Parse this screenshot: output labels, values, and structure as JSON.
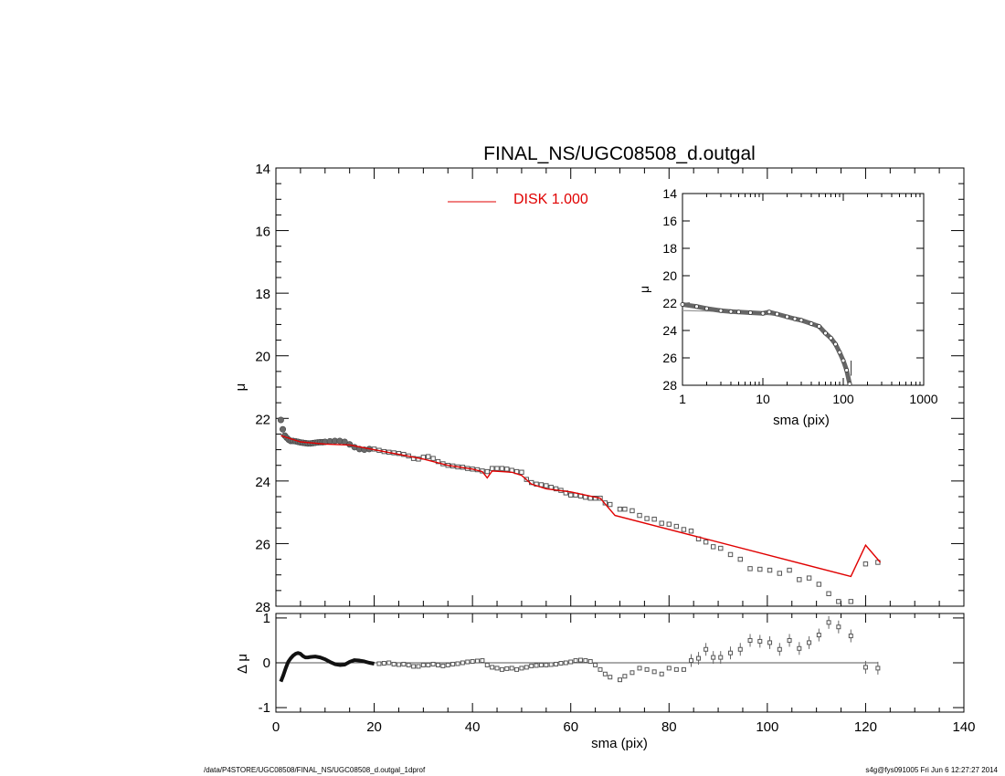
{
  "title": "FINAL_NS/UGC08508_d.outgal",
  "footer": {
    "left": "/data/P4STORE/UGC08508/FINAL_NS/UGC08508_d.outgal_1dprof",
    "right": "s4g@fys091005  Fri Jun  6 12:27:27 2014"
  },
  "colors": {
    "model": "#e00000",
    "data": "#555555",
    "axes": "#000000"
  },
  "chart_data": [
    {
      "panel": "main",
      "type": "scatter",
      "ylabel": "μ",
      "xlim": [
        0,
        140
      ],
      "ylim": [
        28,
        14
      ],
      "yticks": [
        14,
        16,
        18,
        20,
        22,
        24,
        26,
        28
      ],
      "legend": {
        "label": "DISK  1.000",
        "position": "top-center"
      },
      "series": [
        {
          "role": "observed",
          "x": [
            1.0,
            1.4,
            1.8,
            2.2,
            2.6,
            3.0,
            3.5,
            4.0,
            4.5,
            5.0,
            5.5,
            6.0,
            6.5,
            7.0,
            7.5,
            8.0,
            8.5,
            9.0,
            9.5,
            10.0,
            11.0,
            12.0,
            13.0,
            14.0,
            15.0,
            16.0,
            17.0,
            18.0,
            19.0,
            20.0,
            21.0,
            22.0,
            23.0,
            24.0,
            25.0,
            26.0,
            27.0,
            28.0,
            29.0,
            30.0,
            31.0,
            32.0,
            33.0,
            34.0,
            35.0,
            36.0,
            37.0,
            38.0,
            39.0,
            40.0,
            41.0,
            42.0,
            43.0,
            44.0,
            45.0,
            46.0,
            47.0,
            48.0,
            49.0,
            50.0,
            51.0,
            52.0,
            53.0,
            54.0,
            55.0,
            56.0,
            57.0,
            58.0,
            59.0,
            60.0,
            61.0,
            62.0,
            63.0,
            64.0,
            65.0,
            66.0,
            67.0,
            68.0,
            70.0,
            71.0,
            72.5,
            74.0,
            75.5,
            77.0,
            78.5,
            80.0,
            81.5,
            83.0,
            84.5,
            86.0,
            87.5,
            89.0,
            90.5,
            92.5,
            94.5,
            96.5,
            98.5,
            100.5,
            102.5,
            104.5,
            106.5,
            108.5,
            110.5,
            112.5,
            114.5,
            117.0,
            120.0,
            122.5
          ],
          "y": [
            22.05,
            22.35,
            22.55,
            22.62,
            22.68,
            22.72,
            22.72,
            22.73,
            22.75,
            22.77,
            22.78,
            22.79,
            22.8,
            22.8,
            22.79,
            22.78,
            22.77,
            22.76,
            22.76,
            22.75,
            22.73,
            22.72,
            22.72,
            22.75,
            22.83,
            22.92,
            22.98,
            23.0,
            22.98,
            22.98,
            23.02,
            23.06,
            23.08,
            23.1,
            23.12,
            23.15,
            23.2,
            23.28,
            23.3,
            23.24,
            23.22,
            23.28,
            23.38,
            23.45,
            23.5,
            23.52,
            23.55,
            23.56,
            23.6,
            23.62,
            23.64,
            23.68,
            23.7,
            23.6,
            23.6,
            23.6,
            23.62,
            23.66,
            23.7,
            23.72,
            23.95,
            24.05,
            24.1,
            24.12,
            24.15,
            24.2,
            24.25,
            24.3,
            24.38,
            24.45,
            24.45,
            24.48,
            24.52,
            24.55,
            24.55,
            24.55,
            24.7,
            24.75,
            24.9,
            24.9,
            24.95,
            25.1,
            25.2,
            25.22,
            25.35,
            25.38,
            25.45,
            25.55,
            25.6,
            25.85,
            25.95,
            26.1,
            26.15,
            26.35,
            26.5,
            26.8,
            26.82,
            26.85,
            26.95,
            26.85,
            27.15,
            27.1,
            27.3,
            27.6,
            27.85,
            27.85,
            26.65,
            26.6
          ]
        },
        {
          "role": "model",
          "name": "DISK  1.000",
          "x": [
            1,
            5,
            10,
            15,
            20,
            25,
            30,
            35,
            40,
            42,
            43,
            44,
            46,
            48,
            50,
            52,
            55,
            60,
            63,
            66,
            69,
            117,
            120,
            123
          ],
          "y": [
            22.55,
            22.75,
            22.82,
            22.85,
            23.0,
            23.15,
            23.3,
            23.5,
            23.62,
            23.7,
            23.9,
            23.68,
            23.7,
            23.72,
            23.82,
            24.1,
            24.25,
            24.35,
            24.45,
            24.55,
            25.1,
            27.05,
            26.05,
            26.6
          ]
        }
      ]
    },
    {
      "panel": "residual",
      "type": "scatter",
      "xlabel": "sma (pix)",
      "ylabel": "Δ μ",
      "xlim": [
        0,
        140
      ],
      "ylim": [
        -1.1,
        1.1
      ],
      "xticks": [
        0,
        20,
        40,
        60,
        80,
        100,
        120,
        140
      ],
      "yticks": [
        1,
        0,
        -1
      ],
      "series": [
        {
          "role": "residual-line",
          "x": [
            1.0,
            1.5,
            2.0,
            2.5,
            3.0,
            3.5,
            4.0,
            4.5,
            5.0,
            5.5,
            6.0,
            6.5,
            7.0,
            8.0,
            9.0,
            10.0,
            11.0,
            12.0,
            13.0,
            14.0,
            15.0,
            16.0,
            17.0,
            18.0,
            19.0,
            20.0
          ],
          "y": [
            -0.42,
            -0.28,
            -0.12,
            0.02,
            0.1,
            0.16,
            0.2,
            0.22,
            0.2,
            0.15,
            0.12,
            0.12,
            0.13,
            0.14,
            0.12,
            0.08,
            0.02,
            -0.03,
            -0.05,
            -0.04,
            0.02,
            0.06,
            0.05,
            0.03,
            0.0,
            -0.02
          ]
        },
        {
          "role": "residual-points",
          "x": [
            21,
            22,
            23,
            24,
            25,
            26,
            27,
            28,
            29,
            30,
            31,
            32,
            33,
            34,
            35,
            36,
            37,
            38,
            39,
            40,
            41,
            42,
            43,
            44,
            45,
            46,
            47,
            48,
            49,
            50,
            51,
            52,
            53,
            54,
            55,
            56,
            57,
            58,
            59,
            60,
            61,
            62,
            63,
            64,
            65,
            66,
            67,
            68,
            70,
            71,
            72.5,
            74,
            75.5,
            77,
            78.5,
            80,
            81.5,
            83,
            84.5,
            86,
            87.5,
            89,
            90.5,
            92.5,
            94.5,
            96.5,
            98.5,
            100.5,
            102.5,
            104.5,
            106.5,
            108.5,
            110.5,
            112.5,
            114.5,
            117,
            120,
            122.5
          ],
          "y": [
            -0.02,
            -0.01,
            0.0,
            -0.03,
            -0.04,
            -0.03,
            -0.05,
            -0.08,
            -0.08,
            -0.05,
            -0.05,
            -0.03,
            -0.05,
            -0.07,
            -0.05,
            -0.03,
            -0.02,
            0.0,
            0.02,
            0.03,
            0.04,
            0.05,
            -0.05,
            -0.1,
            -0.12,
            -0.15,
            -0.13,
            -0.12,
            -0.15,
            -0.12,
            -0.1,
            -0.07,
            -0.06,
            -0.05,
            -0.05,
            -0.04,
            -0.03,
            -0.01,
            0.0,
            0.02,
            0.05,
            0.06,
            0.05,
            0.03,
            -0.05,
            -0.15,
            -0.25,
            -0.32,
            -0.38,
            -0.3,
            -0.22,
            -0.12,
            -0.15,
            -0.2,
            -0.25,
            -0.12,
            -0.15,
            -0.15,
            0.05,
            0.1,
            0.3,
            0.12,
            0.12,
            0.22,
            0.3,
            0.5,
            0.48,
            0.45,
            0.3,
            0.5,
            0.32,
            0.45,
            0.62,
            0.9,
            0.8,
            0.6,
            -0.1,
            -0.12
          ]
        }
      ]
    },
    {
      "panel": "inset",
      "type": "line",
      "xlabel": "sma (pix)",
      "ylabel": "μ",
      "xscale": "log",
      "xlim": [
        1,
        1000
      ],
      "ylim": [
        28,
        14
      ],
      "xticks": [
        1,
        10,
        100,
        1000
      ],
      "yticks": [
        14,
        16,
        18,
        20,
        22,
        24,
        26,
        28
      ],
      "series": [
        {
          "role": "observed",
          "x": [
            1.0,
            1.5,
            2,
            3,
            4,
            5,
            7,
            10,
            12,
            15,
            20,
            25,
            30,
            40,
            50,
            60,
            70,
            80,
            90,
            100,
            110,
            120
          ],
          "y": [
            22.1,
            22.25,
            22.4,
            22.55,
            22.62,
            22.65,
            22.7,
            22.75,
            22.65,
            22.8,
            23.0,
            23.15,
            23.25,
            23.5,
            23.7,
            24.2,
            24.55,
            25.0,
            25.6,
            26.2,
            26.9,
            27.9
          ]
        },
        {
          "role": "model",
          "x": [
            1,
            3,
            10,
            20,
            30,
            40
          ],
          "y": [
            22.55,
            22.6,
            22.8,
            23.0,
            23.2,
            23.55
          ]
        }
      ]
    }
  ]
}
